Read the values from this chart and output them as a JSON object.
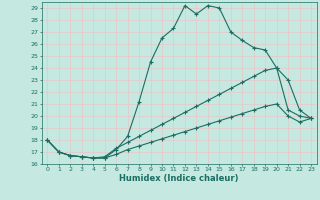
{
  "xlabel": "Humidex (Indice chaleur)",
  "bg_color": "#c5e8e0",
  "line_color": "#1a6e62",
  "grid_color": "#d4ece6",
  "xlim": [
    -0.5,
    23.5
  ],
  "ylim": [
    16,
    29.5
  ],
  "yticks": [
    16,
    17,
    18,
    19,
    20,
    21,
    22,
    23,
    24,
    25,
    26,
    27,
    28,
    29
  ],
  "xticks": [
    0,
    1,
    2,
    3,
    4,
    5,
    6,
    7,
    8,
    9,
    10,
    11,
    12,
    13,
    14,
    15,
    16,
    17,
    18,
    19,
    20,
    21,
    22,
    23
  ],
  "line1_x": [
    0,
    1,
    2,
    3,
    4,
    5,
    6,
    7,
    8,
    9,
    10,
    11,
    12,
    13,
    14,
    15,
    16,
    17,
    18,
    19,
    20,
    21,
    22,
    23
  ],
  "line1_y": [
    18.0,
    17.0,
    16.7,
    16.6,
    16.5,
    16.5,
    17.2,
    18.3,
    21.2,
    24.5,
    26.5,
    27.3,
    29.2,
    28.5,
    29.2,
    29.0,
    27.0,
    26.3,
    25.7,
    25.5,
    24.0,
    23.0,
    20.5,
    19.8
  ],
  "line2_x": [
    0,
    1,
    2,
    3,
    4,
    5,
    6,
    7,
    8,
    9,
    10,
    11,
    12,
    13,
    14,
    15,
    16,
    17,
    18,
    19,
    20,
    21,
    22,
    23
  ],
  "line2_y": [
    18.0,
    17.0,
    16.7,
    16.6,
    16.5,
    16.6,
    17.3,
    17.8,
    18.3,
    18.8,
    19.3,
    19.8,
    20.3,
    20.8,
    21.3,
    21.8,
    22.3,
    22.8,
    23.3,
    23.8,
    24.0,
    20.5,
    20.0,
    19.8
  ],
  "line3_x": [
    0,
    1,
    2,
    3,
    4,
    5,
    6,
    7,
    8,
    9,
    10,
    11,
    12,
    13,
    14,
    15,
    16,
    17,
    18,
    19,
    20,
    21,
    22,
    23
  ],
  "line3_y": [
    18.0,
    17.0,
    16.7,
    16.6,
    16.5,
    16.5,
    16.8,
    17.2,
    17.5,
    17.8,
    18.1,
    18.4,
    18.7,
    19.0,
    19.3,
    19.6,
    19.9,
    20.2,
    20.5,
    20.8,
    21.0,
    20.0,
    19.5,
    19.8
  ]
}
